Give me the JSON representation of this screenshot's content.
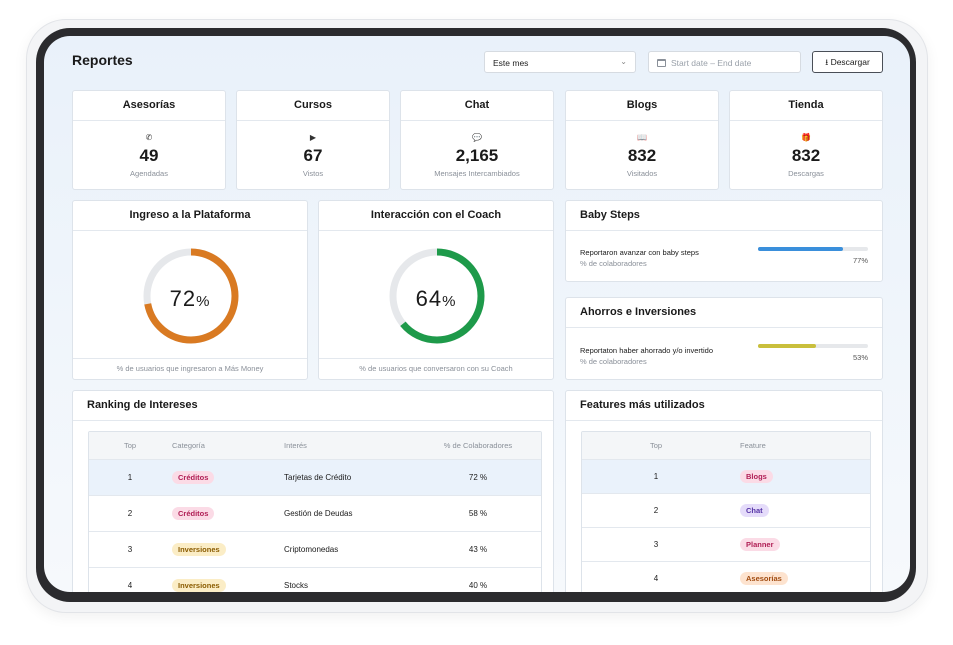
{
  "header": {
    "title": "Reportes",
    "period_select": "Este mes",
    "date_range": "Start date – End date",
    "download_label": "Descargar"
  },
  "stats": [
    {
      "title": "Asesorías",
      "icon": "phone-icon",
      "glyph": "✆",
      "value": "49",
      "subtitle": "Agendadas"
    },
    {
      "title": "Cursos",
      "icon": "play-icon",
      "glyph": "▶",
      "value": "67",
      "subtitle": "Vistos"
    },
    {
      "title": "Chat",
      "icon": "chat-bubble-icon",
      "glyph": "💬",
      "value": "2,165",
      "subtitle": "Mensajes Intercambiados"
    },
    {
      "title": "Blogs",
      "icon": "book-icon",
      "glyph": "📖",
      "value": "832",
      "subtitle": "Visitados"
    },
    {
      "title": "Tienda",
      "icon": "gift-icon",
      "glyph": "🎁",
      "value": "832",
      "subtitle": "Descargas"
    }
  ],
  "gauges": [
    {
      "title": "Ingreso a la Plataforma",
      "value": "72",
      "unit": "%",
      "fraction": 0.72,
      "color": "#d97a22",
      "footer": "% de usuarios que ingresaron a Más Money"
    },
    {
      "title": "Interacción con el Coach",
      "value": "64",
      "unit": "%",
      "fraction": 0.64,
      "color": "#1e9a4a",
      "footer": "% de usuarios que conversaron con su Coach"
    }
  ],
  "baby_steps": {
    "title": "Baby Steps",
    "label": "Reportaron avanzar con baby steps",
    "sublabel": "% de colaboradores",
    "fraction": 0.77,
    "percent": "77%",
    "color": "#3a8fdb"
  },
  "ahorros": {
    "title": "Ahorros e Inversiones",
    "label": "Reportaton haber ahorrado y/o invertido",
    "sublabel": "% de colaboradores",
    "fraction": 0.53,
    "percent": "53%",
    "color": "#c9bf3c"
  },
  "ranking": {
    "title": "Ranking de Intereses",
    "columns": [
      "Top",
      "Categoría",
      "Interés",
      "% de Colaboradores"
    ],
    "rows": [
      {
        "top": "1",
        "category": "Créditos",
        "pill": "pink",
        "interest": "Tarjetas de Crédito",
        "pct": "72 %"
      },
      {
        "top": "2",
        "category": "Créditos",
        "pill": "pink",
        "interest": "Gestión de Deudas",
        "pct": "58 %"
      },
      {
        "top": "3",
        "category": "Inversiones",
        "pill": "yellow",
        "interest": "Criptomonedas",
        "pct": "43 %"
      },
      {
        "top": "4",
        "category": "Inversiones",
        "pill": "yellow",
        "interest": "Stocks",
        "pct": "40 %"
      }
    ]
  },
  "features": {
    "title": "Features más utilizados",
    "columns": [
      "Top",
      "Feature"
    ],
    "rows": [
      {
        "top": "1",
        "feature": "Blogs",
        "pill": "pink"
      },
      {
        "top": "2",
        "feature": "Chat",
        "pill": "purple"
      },
      {
        "top": "3",
        "feature": "Planner",
        "pill": "pink"
      },
      {
        "top": "4",
        "feature": "Asesorías",
        "pill": "orange"
      }
    ]
  }
}
